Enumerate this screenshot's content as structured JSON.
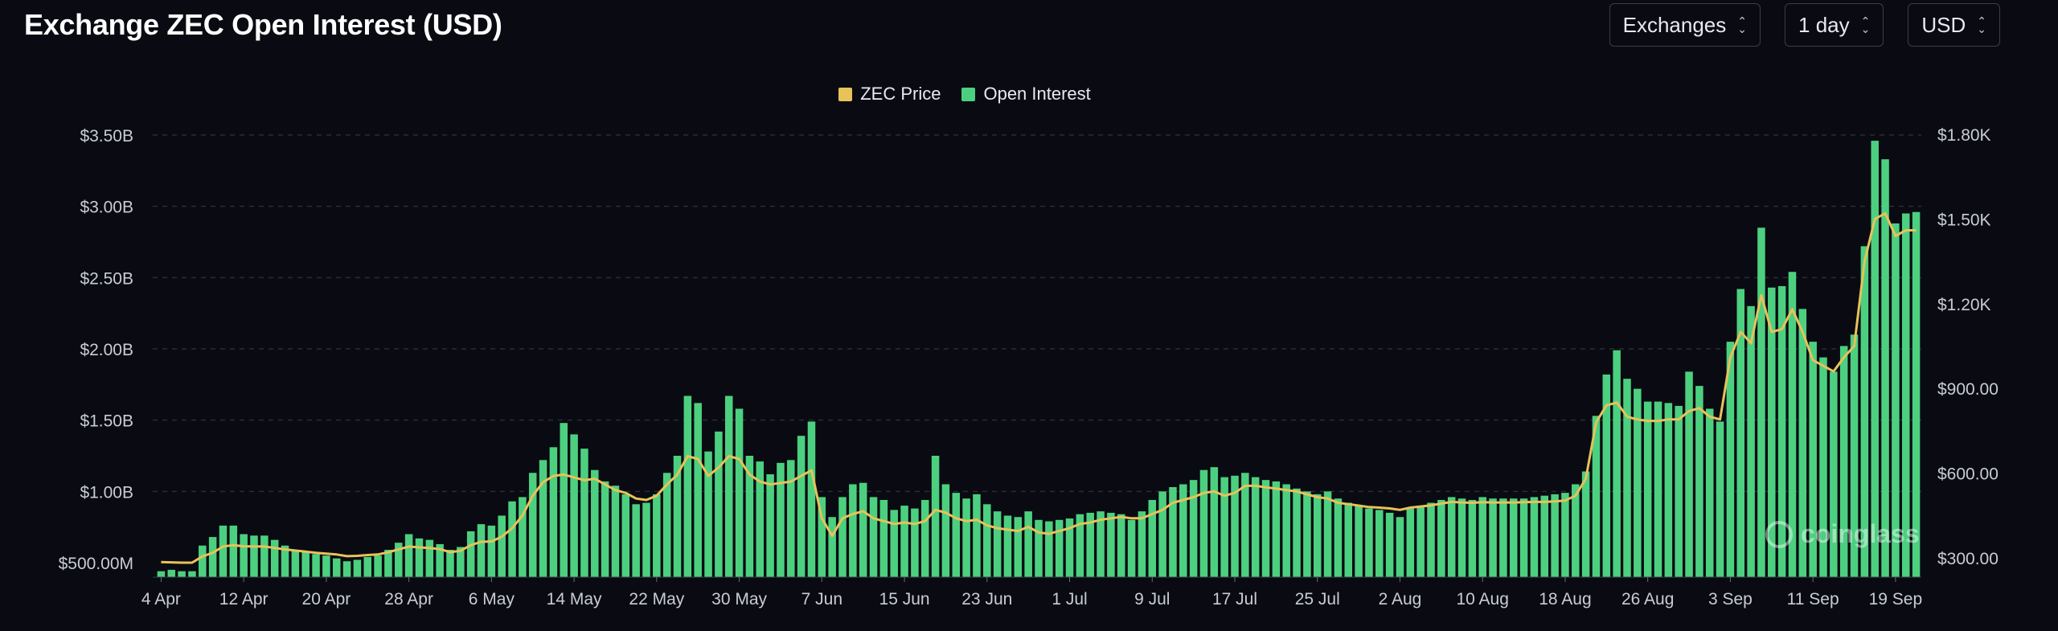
{
  "header": {
    "title": "Exchange ZEC Open Interest (USD)"
  },
  "controls": [
    {
      "name": "exchanges-select",
      "label": "Exchanges"
    },
    {
      "name": "interval-select",
      "label": "1 day"
    },
    {
      "name": "currency-select",
      "label": "USD"
    }
  ],
  "watermark": {
    "text": "coinglass"
  },
  "colors": {
    "background": "#0a0b12",
    "price": "#e8c25a",
    "open_interest": "#4cd080",
    "grid": "#2a2c34"
  },
  "chart_data": {
    "type": "bar",
    "title": "Exchange ZEC Open Interest (USD)",
    "legend": {
      "placement": "top-center",
      "entries": [
        "ZEC Price",
        "Open Interest"
      ]
    },
    "x_tick_labels": [
      "4 Apr",
      "12 Apr",
      "20 Apr",
      "28 Apr",
      "6 May",
      "14 May",
      "22 May",
      "30 May",
      "7 Jun",
      "15 Jun",
      "23 Jun",
      "1 Jul",
      "9 Jul",
      "17 Jul",
      "25 Jul",
      "2 Aug",
      "10 Aug",
      "18 Aug",
      "26 Aug",
      "3 Sep",
      "11 Sep",
      "19 Sep"
    ],
    "y_left": {
      "ticks": [
        500000000,
        1000000000,
        1500000000,
        2000000000,
        2500000000,
        3000000000,
        3500000000
      ],
      "tick_labels": [
        "$500.00M",
        "$1.00B",
        "$1.50B",
        "$2.00B",
        "$2.50B",
        "$3.00B",
        "$3.50B"
      ],
      "range": [
        400000000,
        3500000000
      ]
    },
    "y_right": {
      "ticks": [
        300,
        600,
        900,
        1200,
        1500,
        1800
      ],
      "tick_labels": [
        "$300.00",
        "$600.00",
        "$900.00",
        "$1.20K",
        "$1.50K",
        "$1.80K"
      ],
      "range": [
        280,
        1800
      ]
    },
    "grid": "horizontal-dashed",
    "series": [
      {
        "name": "Open Interest",
        "axis": "left",
        "kind": "bar",
        "values": [
          0.44,
          0.45,
          0.44,
          0.44,
          0.62,
          0.68,
          0.76,
          0.76,
          0.7,
          0.69,
          0.69,
          0.66,
          0.62,
          0.59,
          0.58,
          0.56,
          0.55,
          0.53,
          0.51,
          0.52,
          0.54,
          0.55,
          0.59,
          0.64,
          0.7,
          0.67,
          0.66,
          0.63,
          0.59,
          0.61,
          0.72,
          0.77,
          0.76,
          0.83,
          0.93,
          0.96,
          1.13,
          1.22,
          1.31,
          1.48,
          1.4,
          1.3,
          1.15,
          1.07,
          1.04,
          0.98,
          0.91,
          0.92,
          0.98,
          1.13,
          1.25,
          1.67,
          1.62,
          1.28,
          1.42,
          1.67,
          1.58,
          1.25,
          1.21,
          1.12,
          1.2,
          1.22,
          1.39,
          1.49,
          0.96,
          0.82,
          0.96,
          1.05,
          1.06,
          0.96,
          0.94,
          0.87,
          0.9,
          0.88,
          0.94,
          1.25,
          1.05,
          0.99,
          0.95,
          0.98,
          0.91,
          0.86,
          0.83,
          0.82,
          0.86,
          0.8,
          0.79,
          0.8,
          0.81,
          0.84,
          0.85,
          0.86,
          0.85,
          0.84,
          0.8,
          0.86,
          0.94,
          1.0,
          1.03,
          1.05,
          1.08,
          1.15,
          1.17,
          1.1,
          1.11,
          1.13,
          1.1,
          1.08,
          1.07,
          1.05,
          1.02,
          1.0,
          0.98,
          1.0,
          0.95,
          0.92,
          0.9,
          0.88,
          0.87,
          0.85,
          0.82,
          0.88,
          0.9,
          0.92,
          0.94,
          0.96,
          0.95,
          0.94,
          0.96,
          0.95,
          0.95,
          0.95,
          0.95,
          0.96,
          0.97,
          0.98,
          0.99,
          1.05,
          1.14,
          1.53,
          1.82,
          1.99,
          1.79,
          1.72,
          1.63,
          1.63,
          1.62,
          1.6,
          1.84,
          1.74,
          1.58,
          1.49,
          2.05,
          2.42,
          2.3,
          2.85,
          2.43,
          2.44,
          2.54,
          2.28,
          2.05,
          1.94,
          1.84,
          2.02,
          2.1,
          2.72,
          3.46,
          3.33,
          2.88,
          2.95,
          2.96
        ]
      },
      {
        "name": "ZEC Price",
        "axis": "right",
        "kind": "line",
        "values": [
          285,
          284,
          283,
          283,
          305,
          318,
          340,
          345,
          341,
          340,
          340,
          335,
          330,
          326,
          322,
          318,
          315,
          312,
          306,
          307,
          310,
          312,
          320,
          330,
          340,
          337,
          335,
          331,
          320,
          325,
          345,
          357,
          358,
          375,
          405,
          450,
          520,
          568,
          590,
          595,
          585,
          575,
          580,
          560,
          540,
          530,
          510,
          505,
          520,
          560,
          595,
          660,
          650,
          590,
          620,
          660,
          650,
          595,
          570,
          560,
          565,
          570,
          590,
          610,
          440,
          378,
          440,
          455,
          465,
          440,
          430,
          420,
          425,
          420,
          430,
          470,
          460,
          440,
          430,
          435,
          415,
          405,
          400,
          395,
          410,
          390,
          385,
          395,
          405,
          420,
          425,
          435,
          440,
          445,
          440,
          440,
          455,
          470,
          495,
          505,
          515,
          530,
          535,
          520,
          530,
          555,
          555,
          550,
          545,
          540,
          535,
          525,
          515,
          510,
          495,
          490,
          485,
          480,
          478,
          475,
          470,
          478,
          482,
          486,
          492,
          498,
          496,
          495,
          497,
          496,
          496,
          496,
          497,
          498,
          498,
          500,
          503,
          520,
          580,
          780,
          840,
          850,
          800,
          790,
          785,
          785,
          790,
          790,
          820,
          830,
          800,
          790,
          1010,
          1100,
          1060,
          1230,
          1100,
          1110,
          1180,
          1100,
          1000,
          980,
          960,
          1010,
          1050,
          1350,
          1500,
          1520,
          1440,
          1460,
          1460
        ]
      }
    ]
  }
}
